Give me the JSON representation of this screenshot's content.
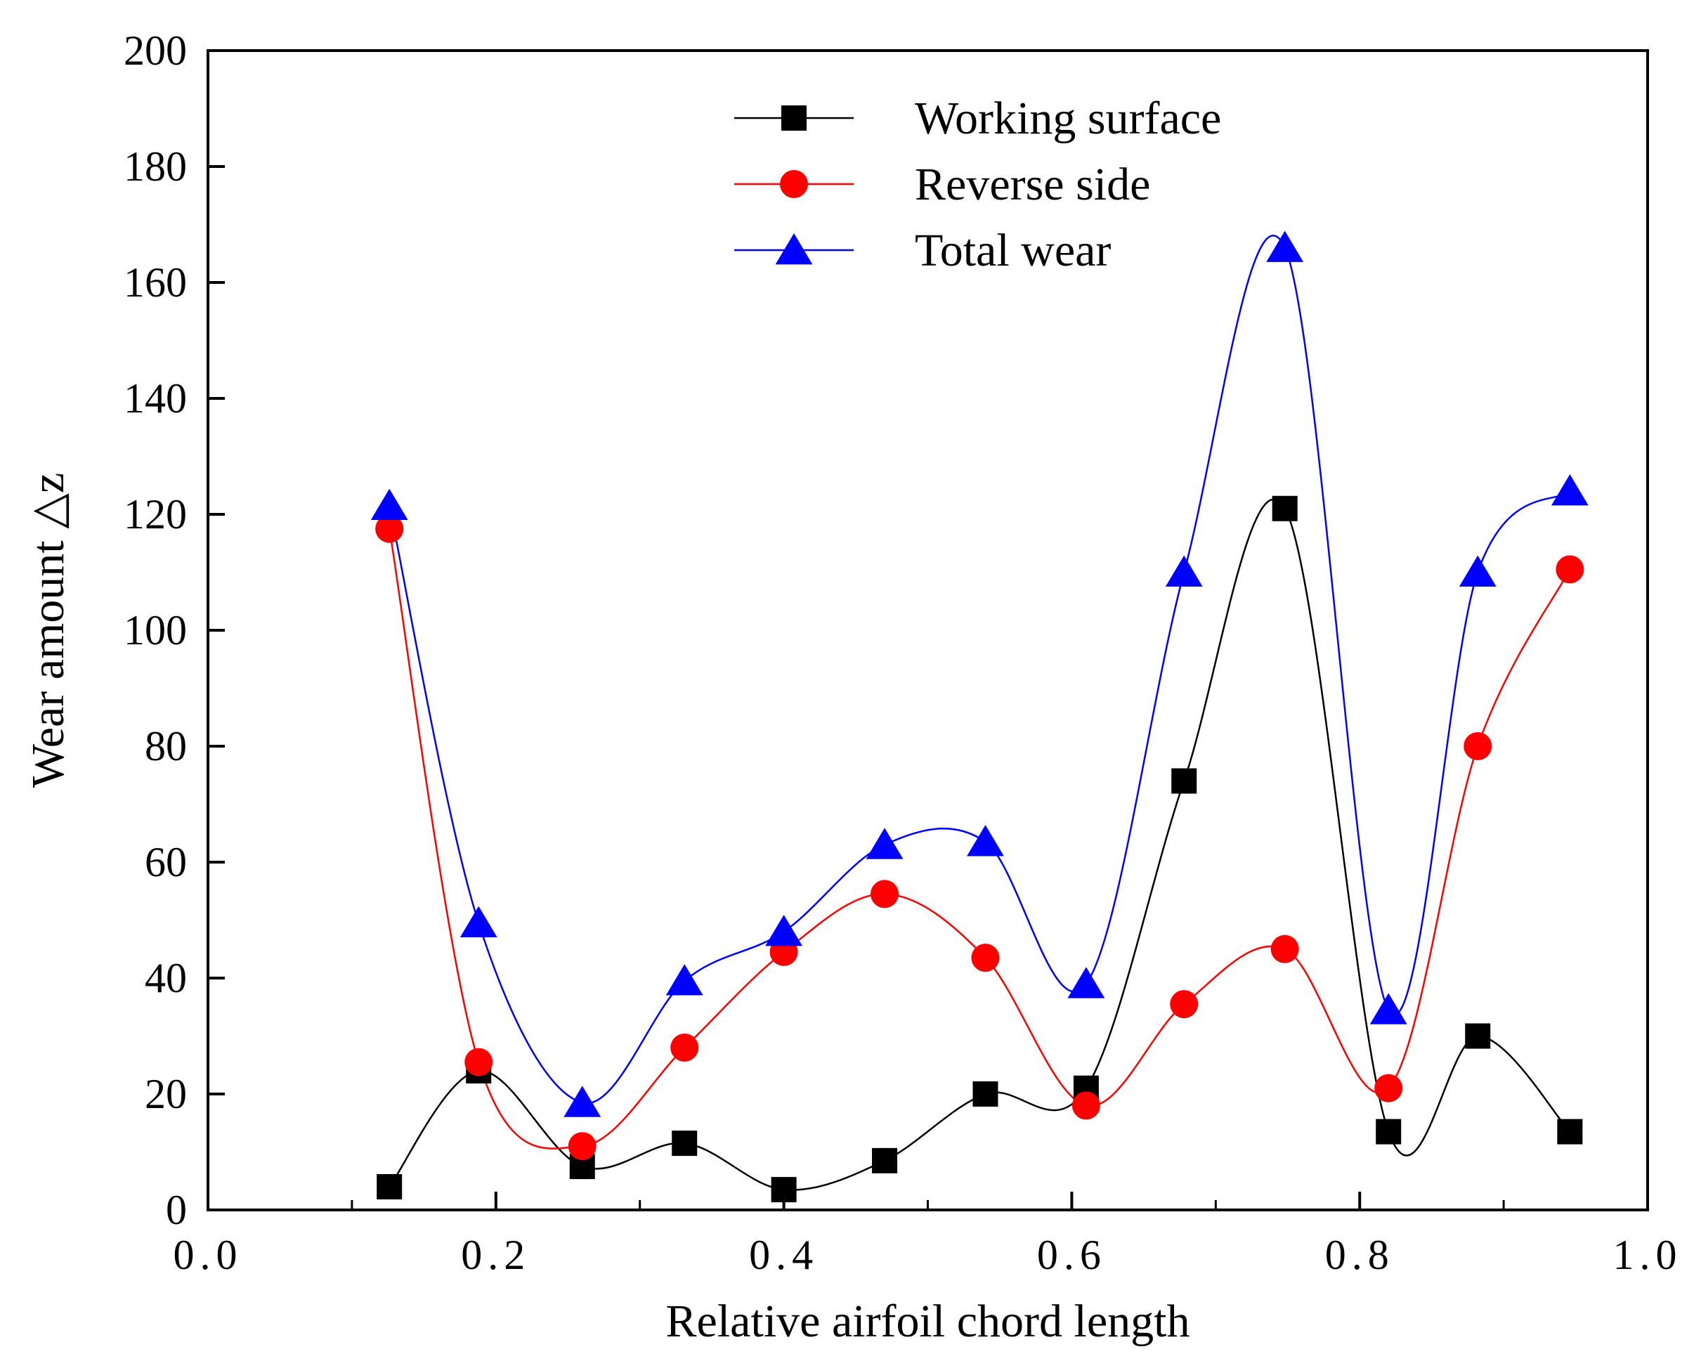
{
  "chart_data": {
    "type": "line",
    "title": "",
    "xlabel": "Relative airfoil chord length",
    "ylabel": "Wear amount △z",
    "xlim": [
      0.0,
      1.0
    ],
    "ylim": [
      0,
      200
    ],
    "x_ticks": [
      0.0,
      0.2,
      0.4,
      0.6,
      0.8,
      1.0
    ],
    "x_tick_labels": [
      "0.0",
      "0.2",
      "0.4",
      "0.6",
      "0.8",
      "1.0"
    ],
    "x_minor_ticks": [
      0.1,
      0.3,
      0.5,
      0.7,
      0.9
    ],
    "y_ticks": [
      0,
      20,
      40,
      60,
      80,
      100,
      120,
      140,
      160,
      180,
      200
    ],
    "y_tick_labels": [
      "0",
      "20",
      "40",
      "60",
      "80",
      "100",
      "120",
      "140",
      "160",
      "180",
      "200"
    ],
    "grid": false,
    "legend_position": "top-center",
    "x": [
      0.126,
      0.188,
      0.26,
      0.331,
      0.4,
      0.47,
      0.54,
      0.61,
      0.678,
      0.748,
      0.82,
      0.882,
      0.946
    ],
    "series": [
      {
        "name": "Working surface",
        "color": "#000000",
        "marker": "square",
        "values": [
          4,
          24,
          7.5,
          11.5,
          3.5,
          8.5,
          20,
          21,
          74,
          121,
          13.5,
          30,
          13.5
        ]
      },
      {
        "name": "Reverse side",
        "color": "#ff0000",
        "marker": "circle",
        "values": [
          117.5,
          25.5,
          11,
          28,
          44.5,
          54.5,
          43.5,
          18,
          35.5,
          45,
          21,
          80,
          110.5
        ]
      },
      {
        "name": "Total wear",
        "color": "#0000ff",
        "marker": "triangle",
        "values": [
          121.5,
          49.5,
          18.5,
          39.5,
          48,
          63,
          63.5,
          39,
          110,
          166,
          34.5,
          110,
          124
        ]
      }
    ]
  }
}
